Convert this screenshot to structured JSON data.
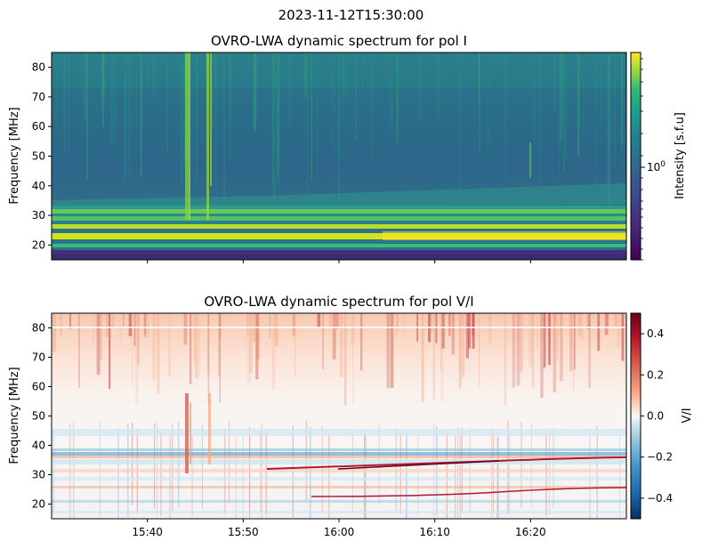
{
  "figure_title": "2023-11-12T15:30:00",
  "chart_data": [
    {
      "type": "heatmap",
      "title": "OVRO-LWA dynamic spectrum for pol I",
      "xlabel": "",
      "ylabel": "Frequency [MHz]",
      "x_range": [
        "15:30",
        "16:30"
      ],
      "x_ticks": [
        "15:40",
        "15:50",
        "16:00",
        "16:10",
        "16:20"
      ],
      "ylim": [
        15,
        85
      ],
      "y_ticks": [
        20,
        30,
        40,
        50,
        60,
        70,
        80
      ],
      "colorbar": {
        "label": "Intensity [s.f.u]",
        "scale": "log",
        "colormap": "viridis",
        "tick_labels": [
          "10^0"
        ],
        "colors": [
          "#440154",
          "#3b528b",
          "#21918c",
          "#5ec962",
          "#fde725"
        ]
      },
      "features": [
        {
          "label": "broadband emission 15:44–15:45",
          "freq_range_mhz": [
            28,
            85
          ]
        },
        {
          "label": "broadband emission 15:46–15:47",
          "freq_range_mhz": [
            28,
            85
          ]
        },
        {
          "label": "bright band",
          "freq_range_mhz": [
            20,
            31
          ]
        }
      ]
    },
    {
      "type": "heatmap",
      "title": "OVRO-LWA dynamic spectrum for pol V/I",
      "xlabel": "",
      "ylabel": "Frequency [MHz]",
      "x_range": [
        "15:30",
        "16:30"
      ],
      "x_ticks": [
        "15:40",
        "15:50",
        "16:00",
        "16:10",
        "16:20"
      ],
      "ylim": [
        15,
        85
      ],
      "y_ticks": [
        20,
        30,
        40,
        50,
        60,
        70,
        80
      ],
      "colorbar": {
        "label": "V/I",
        "scale": "linear",
        "colormap": "RdBu_r",
        "range": [
          -0.5,
          0.5
        ],
        "tick_labels": [
          "0.4",
          "0.2",
          "0.0",
          "−0.2",
          "−0.4"
        ],
        "colors": [
          "#053061",
          "#4393c3",
          "#f7f7f7",
          "#d6604d",
          "#67001f"
        ]
      }
    }
  ]
}
